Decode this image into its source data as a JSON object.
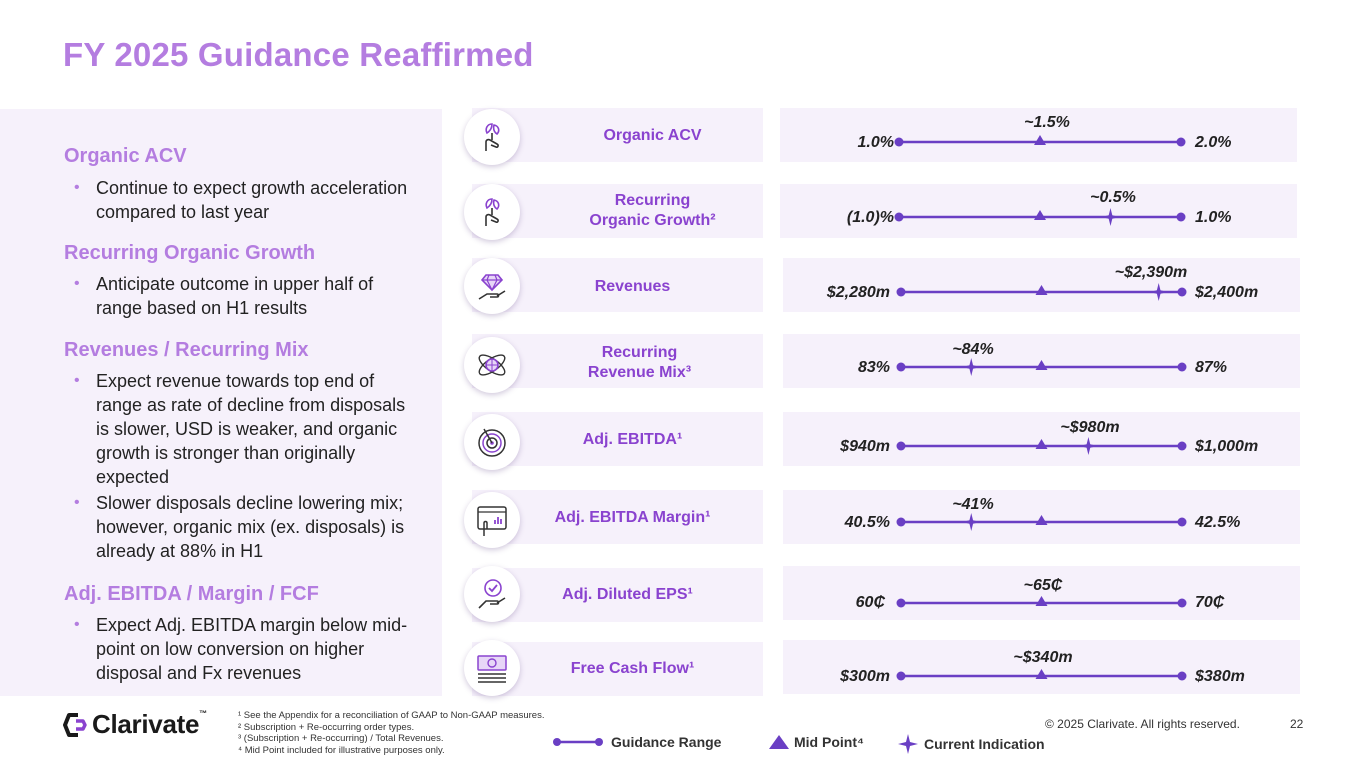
{
  "title": "FY 2025 Guidance Reaffirmed",
  "commentary": [
    {
      "heading": "Organic ACV",
      "bullets": [
        "Continue to expect growth acceleration compared to last year"
      ]
    },
    {
      "heading": "Recurring Organic Growth",
      "bullets": [
        "Anticipate outcome in upper half of range based on H1 results"
      ]
    },
    {
      "heading": "Revenues / Recurring Mix",
      "bullets": [
        "Expect revenue towards top end of range as rate of decline from disposals is slower, USD is weaker, and organic growth is stronger than originally expected",
        "Slower disposals decline lowering mix; however, organic mix (ex. disposals) is already at 88% in H1"
      ]
    },
    {
      "heading": "Adj. EBITDA / Margin / FCF",
      "bullets": [
        "Expect Adj. EBITDA margin below mid-point on low conversion on higher disposal and Fx revenues"
      ]
    }
  ],
  "metrics": [
    {
      "label_lines": [
        "Organic ACV"
      ],
      "icon": "plant-in-hand-icon",
      "low": "1.0%",
      "high": "2.0%",
      "guidance": "~1.5%",
      "current_position": 0.5
    },
    {
      "label_lines": [
        "Recurring",
        "Organic Growth²"
      ],
      "icon": "plant-in-hand-icon",
      "low": "(1.0)%",
      "high": "1.0%",
      "guidance": "~0.5%",
      "current_position": 0.75
    },
    {
      "label_lines": [
        "Revenues"
      ],
      "icon": "diamond-in-hand-icon",
      "low": "$2,280m",
      "high": "$2,400m",
      "guidance": "~$2,390m",
      "current_position": 0.917
    },
    {
      "label_lines": [
        "Recurring",
        "Revenue Mix³"
      ],
      "icon": "globe-orbit-icon",
      "low": "83%",
      "high": "87%",
      "guidance": "~84%",
      "current_position": 0.25
    },
    {
      "label_lines": [
        "Adj. EBITDA¹"
      ],
      "icon": "target-icon",
      "low": "$940m",
      "high": "$1,000m",
      "guidance": "~$980m",
      "current_position": 0.667
    },
    {
      "label_lines": [
        "Adj. EBITDA Margin¹"
      ],
      "icon": "dashboard-hand-icon",
      "low": "40.5%",
      "high": "42.5%",
      "guidance": "~41%",
      "current_position": 0.25
    },
    {
      "label_lines": [
        "Adj. Diluted EPS¹"
      ],
      "icon": "check-in-hand-icon",
      "low": "60₵",
      "high": "70₵",
      "guidance": "~65₵",
      "current_position": 0.5
    },
    {
      "label_lines": [
        "Free Cash Flow¹"
      ],
      "icon": "cash-stack-icon",
      "low": "$300m",
      "high": "$380m",
      "guidance": "~$340m",
      "current_position": 0.5
    }
  ],
  "legend": {
    "range": "Guidance Range",
    "mid": "Mid Point⁴",
    "current": "Current Indication"
  },
  "footnotes": [
    "¹ See the Appendix for a reconciliation of GAAP to Non-GAAP measures.",
    "² Subscription + Re-occurring order types.",
    "³ (Subscription + Re-occurring) / Total Revenues.",
    "⁴ Mid Point included for illustrative purposes only."
  ],
  "logo_text": "Clarivate",
  "logo_tm": "™",
  "copyright": "© 2025 Clarivate. All rights reserved.",
  "page_number": "22",
  "colors": {
    "accent": "#b47de0",
    "line": "#6a3fc4",
    "panel": "#f6f1fb"
  }
}
